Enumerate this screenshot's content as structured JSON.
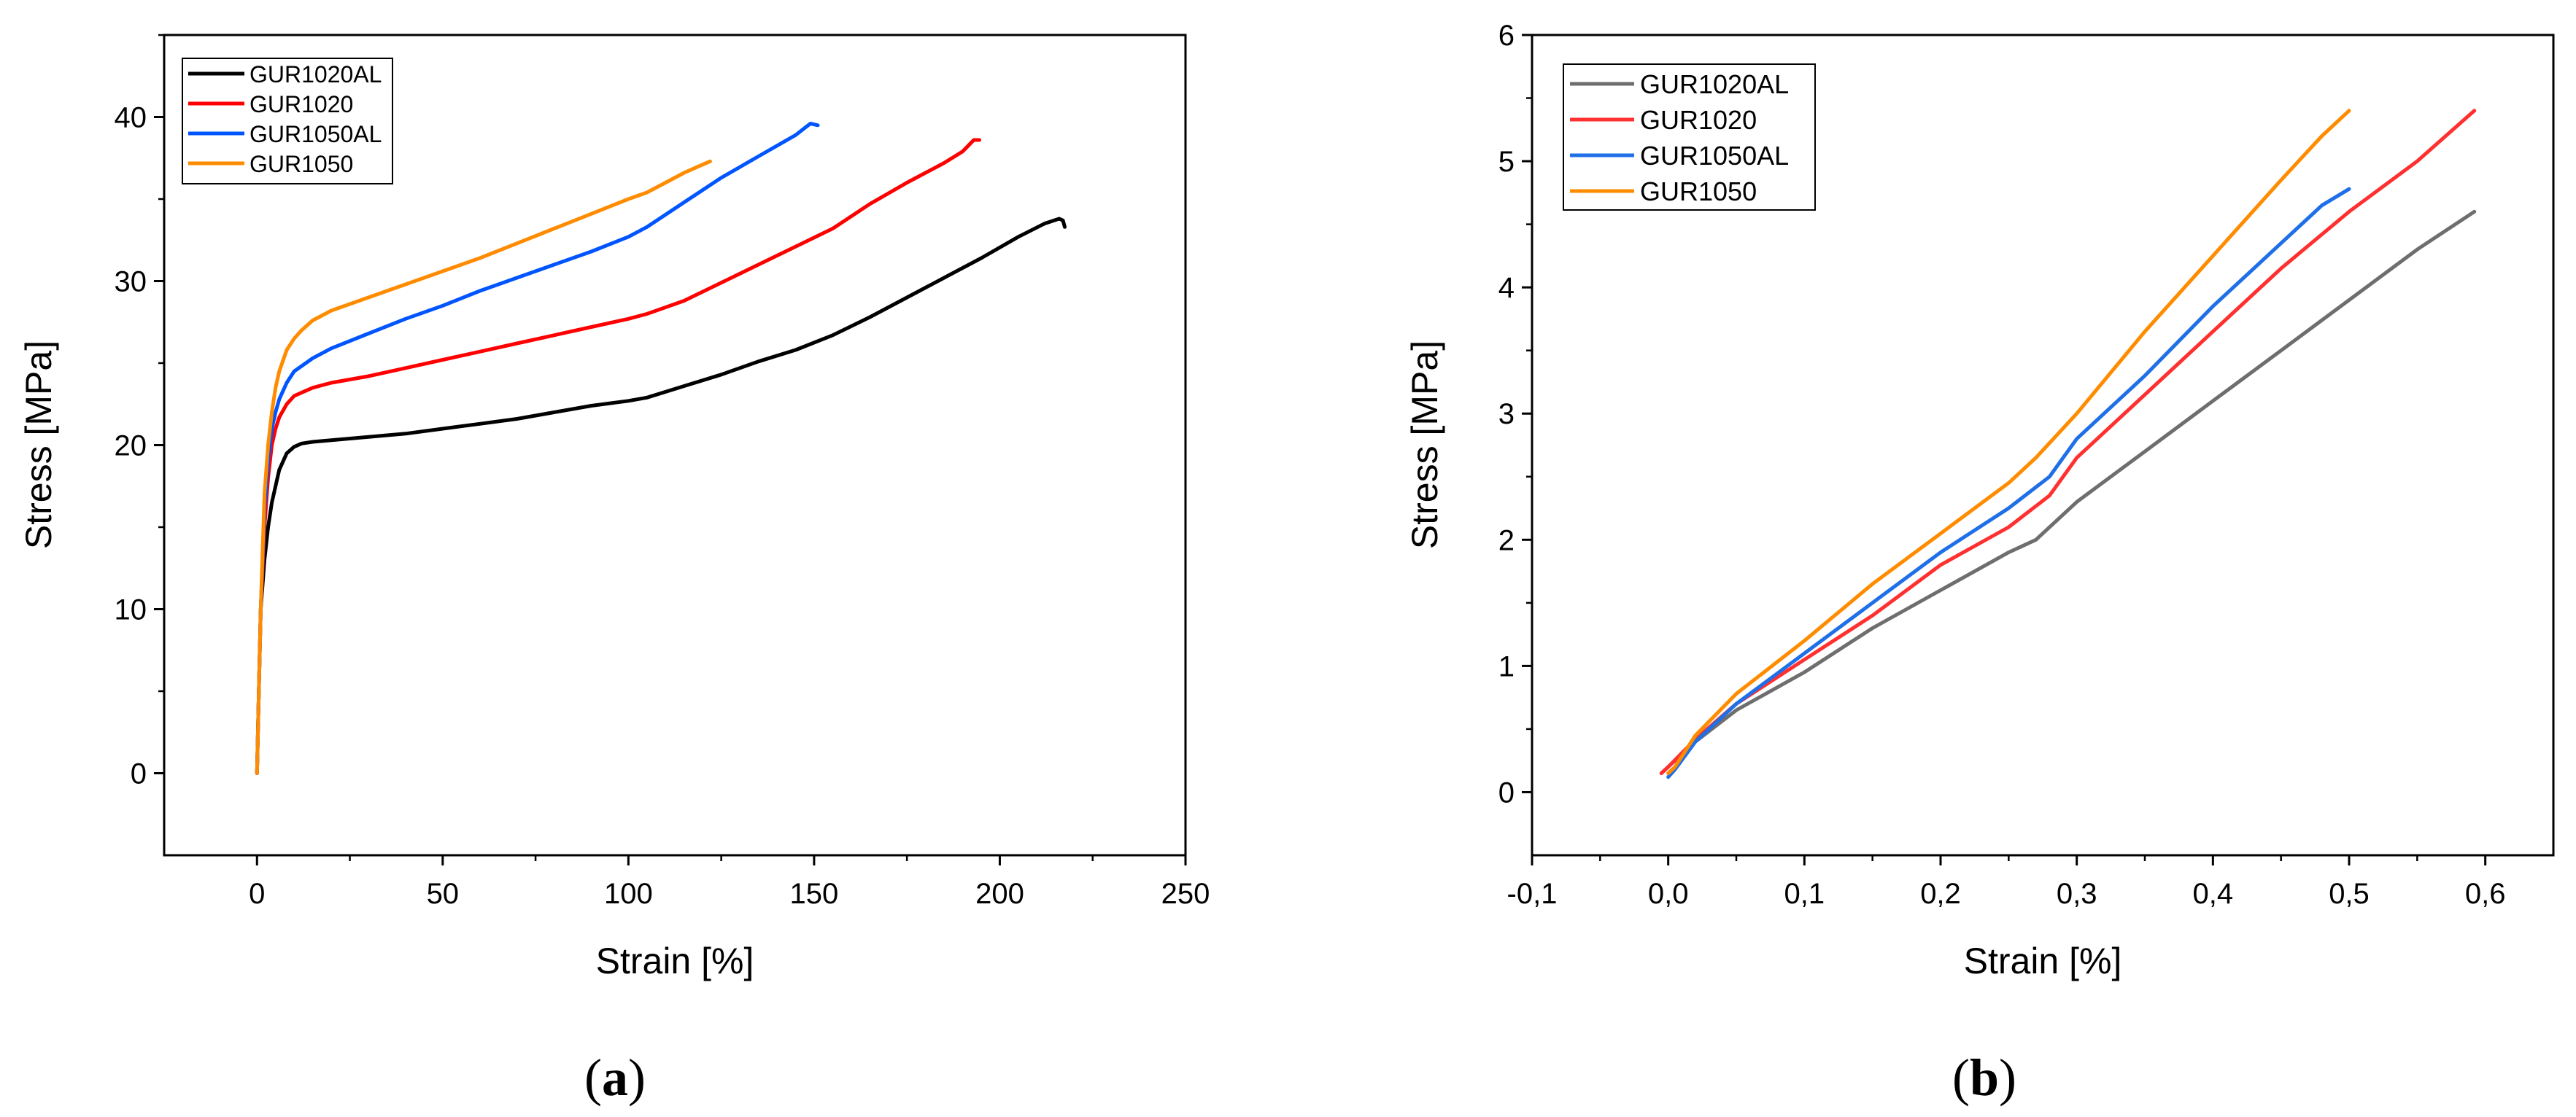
{
  "chart_data": [
    {
      "panel": "a",
      "type": "line",
      "xlabel": "Strain [%]",
      "ylabel": "Stress [MPa]",
      "xlim": [
        -25,
        250
      ],
      "ylim": [
        -5,
        45
      ],
      "x_ticks": [
        {
          "value": 0,
          "label": "0"
        },
        {
          "value": 50,
          "label": "50"
        },
        {
          "value": 100,
          "label": "100"
        },
        {
          "value": 150,
          "label": "150"
        },
        {
          "value": 200,
          "label": "200"
        },
        {
          "value": 250,
          "label": "250"
        }
      ],
      "y_ticks": [
        {
          "value": 0,
          "label": "0"
        },
        {
          "value": 10,
          "label": "10"
        },
        {
          "value": 20,
          "label": "20"
        },
        {
          "value": 30,
          "label": "30"
        },
        {
          "value": 40,
          "label": "40"
        }
      ],
      "legend_position": "top-left",
      "series": [
        {
          "name": "GUR1020AL",
          "color": "#000000",
          "x": [
            0,
            0.5,
            1,
            2,
            3,
            4,
            5,
            6,
            8,
            10,
            12,
            15,
            20,
            30,
            40,
            50,
            60,
            70,
            80,
            90,
            100,
            105,
            115,
            125,
            135,
            145,
            155,
            165,
            175,
            185,
            195,
            205,
            212,
            216,
            217,
            217.5
          ],
          "y": [
            0,
            5,
            10,
            13,
            15,
            16.5,
            17.5,
            18.5,
            19.5,
            19.9,
            20.1,
            20.2,
            20.3,
            20.5,
            20.7,
            21.0,
            21.3,
            21.6,
            22.0,
            22.4,
            22.7,
            22.9,
            23.6,
            24.3,
            25.1,
            25.8,
            26.7,
            27.8,
            29.0,
            30.2,
            31.4,
            32.7,
            33.5,
            33.8,
            33.7,
            33.3
          ]
        },
        {
          "name": "GUR1020",
          "color": "#ff0000",
          "x": [
            0,
            0.5,
            1,
            2,
            3,
            4,
            5,
            6,
            8,
            10,
            15,
            20,
            30,
            40,
            50,
            60,
            70,
            80,
            90,
            100,
            105,
            115,
            125,
            135,
            145,
            155,
            165,
            175,
            185,
            190,
            193,
            194.5
          ],
          "y": [
            0,
            5,
            10,
            15,
            18,
            20,
            21,
            21.7,
            22.5,
            23.0,
            23.5,
            23.8,
            24.2,
            24.7,
            25.2,
            25.7,
            26.2,
            26.7,
            27.2,
            27.7,
            28.0,
            28.8,
            29.9,
            31.0,
            32.1,
            33.2,
            34.7,
            36.0,
            37.2,
            37.9,
            38.6,
            38.6
          ]
        },
        {
          "name": "GUR1050AL",
          "color": "#0055ff",
          "x": [
            0,
            0.5,
            1,
            2,
            3,
            4,
            5,
            6,
            8,
            10,
            15,
            20,
            30,
            40,
            50,
            60,
            70,
            80,
            90,
            100,
            105,
            115,
            125,
            135,
            145,
            149,
            151
          ],
          "y": [
            0,
            5,
            10,
            16,
            19,
            21,
            22,
            22.8,
            23.8,
            24.5,
            25.3,
            25.9,
            26.8,
            27.7,
            28.5,
            29.4,
            30.2,
            31.0,
            31.8,
            32.7,
            33.3,
            34.8,
            36.3,
            37.6,
            38.9,
            39.6,
            39.5
          ]
        },
        {
          "name": "GUR1050",
          "color": "#ff8c00",
          "x": [
            0,
            0.5,
            1,
            2,
            3,
            4,
            5,
            6,
            8,
            10,
            12,
            15,
            20,
            30,
            40,
            50,
            60,
            70,
            80,
            90,
            100,
            105,
            110,
            115,
            120,
            122
          ],
          "y": [
            0,
            5,
            10,
            17,
            20,
            22,
            23.5,
            24.5,
            25.8,
            26.5,
            27.0,
            27.6,
            28.2,
            29.0,
            29.8,
            30.6,
            31.4,
            32.3,
            33.2,
            34.1,
            35.0,
            35.4,
            36.0,
            36.6,
            37.1,
            37.3
          ]
        }
      ]
    },
    {
      "panel": "b",
      "type": "line",
      "xlabel": "Strain [%]",
      "ylabel": "Stress [MPa]",
      "xlim": [
        -0.1,
        0.65
      ],
      "ylim": [
        -0.5,
        6
      ],
      "x_ticks": [
        {
          "value": -0.1,
          "label": "-0,1"
        },
        {
          "value": 0.0,
          "label": "0,0"
        },
        {
          "value": 0.1,
          "label": "0,1"
        },
        {
          "value": 0.2,
          "label": "0,2"
        },
        {
          "value": 0.3,
          "label": "0,3"
        },
        {
          "value": 0.4,
          "label": "0,4"
        },
        {
          "value": 0.5,
          "label": "0,5"
        },
        {
          "value": 0.6,
          "label": "0,6"
        }
      ],
      "y_ticks": [
        {
          "value": 0,
          "label": "0"
        },
        {
          "value": 1,
          "label": "1"
        },
        {
          "value": 2,
          "label": "2"
        },
        {
          "value": 3,
          "label": "3"
        },
        {
          "value": 4,
          "label": "4"
        },
        {
          "value": 5,
          "label": "5"
        },
        {
          "value": 6,
          "label": "6"
        }
      ],
      "legend_position": "top-left",
      "series": [
        {
          "name": "GUR1020AL",
          "color": "#6e6e6e",
          "x": [
            -0.005,
            0,
            0.02,
            0.05,
            0.1,
            0.15,
            0.2,
            0.25,
            0.27,
            0.3,
            0.35,
            0.4,
            0.45,
            0.5,
            0.55,
            0.592
          ],
          "y": [
            0.15,
            0.2,
            0.4,
            0.65,
            0.95,
            1.3,
            1.6,
            1.9,
            2.0,
            2.3,
            2.7,
            3.1,
            3.5,
            3.9,
            4.3,
            4.6
          ]
        },
        {
          "name": "GUR1020",
          "color": "#ff3030",
          "x": [
            -0.005,
            0,
            0.02,
            0.05,
            0.1,
            0.15,
            0.2,
            0.25,
            0.28,
            0.3,
            0.35,
            0.4,
            0.45,
            0.5,
            0.55,
            0.592
          ],
          "y": [
            0.15,
            0.2,
            0.42,
            0.7,
            1.05,
            1.4,
            1.8,
            2.1,
            2.35,
            2.65,
            3.15,
            3.65,
            4.15,
            4.6,
            5.0,
            5.4
          ]
        },
        {
          "name": "GUR1050AL",
          "color": "#1e6fe8",
          "x": [
            0,
            0.005,
            0.02,
            0.05,
            0.1,
            0.15,
            0.2,
            0.25,
            0.28,
            0.3,
            0.35,
            0.4,
            0.45,
            0.48,
            0.5
          ],
          "y": [
            0.12,
            0.18,
            0.4,
            0.7,
            1.1,
            1.5,
            1.9,
            2.25,
            2.5,
            2.8,
            3.3,
            3.85,
            4.35,
            4.65,
            4.78
          ]
        },
        {
          "name": "GUR1050",
          "color": "#ff8c00",
          "x": [
            0,
            0.005,
            0.02,
            0.05,
            0.1,
            0.15,
            0.2,
            0.25,
            0.27,
            0.3,
            0.35,
            0.4,
            0.45,
            0.48,
            0.5
          ],
          "y": [
            0.15,
            0.2,
            0.45,
            0.78,
            1.2,
            1.65,
            2.05,
            2.45,
            2.65,
            3.0,
            3.65,
            4.25,
            4.85,
            5.2,
            5.4
          ]
        }
      ]
    }
  ],
  "panel_labels": {
    "a": {
      "open": "(",
      "letter": "a",
      "close": ")"
    },
    "b": {
      "open": "(",
      "letter": "b",
      "close": ")"
    }
  }
}
